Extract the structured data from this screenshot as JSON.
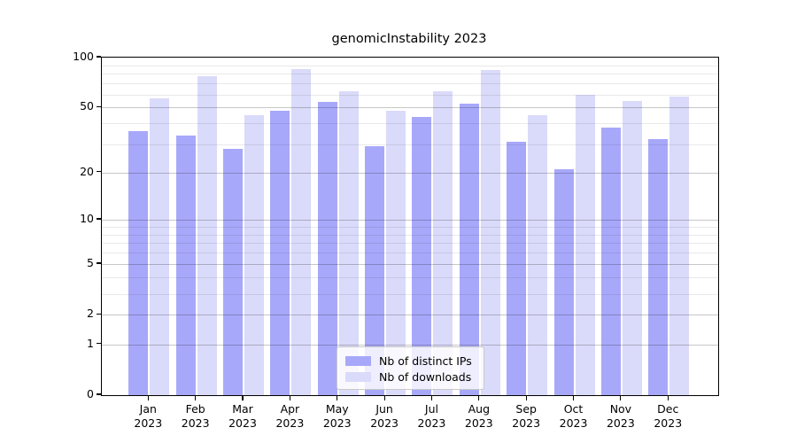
{
  "chart_data": {
    "type": "bar",
    "title": "genomicInstability 2023",
    "categories": [
      "Jan 2023",
      "Feb 2023",
      "Mar 2023",
      "Apr 2023",
      "May 2023",
      "Jun 2023",
      "Jul 2023",
      "Aug 2023",
      "Sep 2023",
      "Oct 2023",
      "Nov 2023",
      "Dec 2023"
    ],
    "series": [
      {
        "name": "Nb of distinct IPs",
        "color": "#a8a8fa",
        "values": [
          36,
          34,
          28,
          48,
          54,
          29,
          44,
          53,
          31,
          21,
          38,
          32
        ]
      },
      {
        "name": "Nb of downloads",
        "color": "#dadafa",
        "values": [
          57,
          77,
          45,
          85,
          63,
          48,
          63,
          84,
          45,
          60,
          55,
          58
        ]
      }
    ],
    "yscale": "log1p",
    "ylim": [
      0,
      100
    ],
    "yticks": [
      0,
      1,
      2,
      5,
      10,
      20,
      50,
      100
    ],
    "minor_gridlines": [
      3,
      4,
      6,
      7,
      8,
      9,
      30,
      40,
      60,
      70,
      80,
      90
    ],
    "grid": true,
    "legend": {
      "position": "lower-center",
      "entries": [
        "Nb of distinct IPs",
        "Nb of downloads"
      ]
    },
    "xlabel": "",
    "ylabel": ""
  },
  "colors": {
    "bar_distinct_ips": "#a8a8fa",
    "bar_downloads": "#dadafa",
    "axis": "#000000",
    "grid_major": "#c6c6c6",
    "grid_minor": "#e8e8e8",
    "legend_border": "#c9c9c9"
  }
}
